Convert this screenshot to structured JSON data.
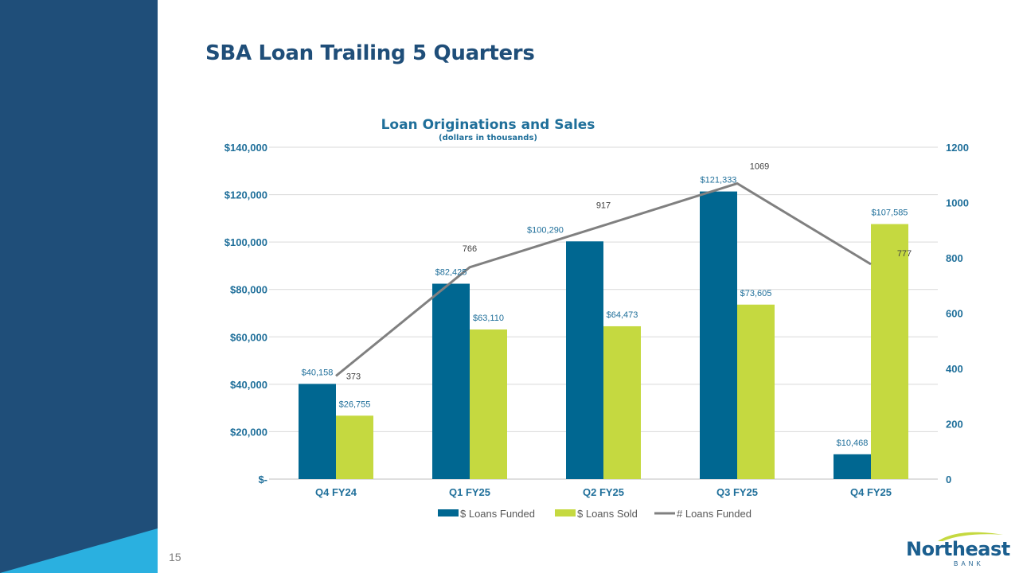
{
  "slide": {
    "title": "SBA Loan Trailing 5 Quarters",
    "page_number": "15"
  },
  "logo": {
    "name": "Northeast",
    "sub": "BANK"
  },
  "colors": {
    "sidebar": "#1f4e79",
    "sidebar_accent": "#2ab0e0",
    "funded": "#006791",
    "sold": "#c5d940",
    "count_line": "#808080",
    "axis_text": "#1f6f9a",
    "title": "#1f6f9a"
  },
  "chart_data": {
    "type": "bar",
    "title": "Loan Originations and Sales",
    "subtitle": "(dollars in thousands)",
    "categories": [
      "Q4 FY24",
      "Q1 FY25",
      "Q2 FY25",
      "Q3 FY25",
      "Q4 FY25"
    ],
    "series": [
      {
        "name": "$ Loans Funded",
        "kind": "bar",
        "axis": "left",
        "values": [
          40158,
          82425,
          100290,
          121333,
          10468
        ],
        "labels": [
          "$40,158",
          "$82,425",
          "$100,290",
          "$121,333",
          "$10,468"
        ]
      },
      {
        "name": "$ Loans Sold",
        "kind": "bar",
        "axis": "left",
        "values": [
          26755,
          63110,
          64473,
          73605,
          107585
        ],
        "labels": [
          "$26,755",
          "$63,110",
          "$64,473",
          "$73,605",
          "$107,585"
        ]
      },
      {
        "name": "# Loans Funded",
        "kind": "line",
        "axis": "right",
        "values": [
          373,
          766,
          917,
          1069,
          777
        ],
        "labels": [
          "373",
          "766",
          "917",
          "1069",
          "777"
        ]
      }
    ],
    "y_left": {
      "lim": [
        0,
        140000
      ],
      "ticks": [
        0,
        20000,
        40000,
        60000,
        80000,
        100000,
        120000,
        140000
      ],
      "tick_labels": [
        "$-",
        "$20,000",
        "$40,000",
        "$60,000",
        "$80,000",
        "$100,000",
        "$120,000",
        "$140,000"
      ]
    },
    "y_right": {
      "lim": [
        0,
        1200
      ],
      "ticks": [
        0,
        200,
        400,
        600,
        800,
        1000,
        1200
      ],
      "tick_labels": [
        "0",
        "200",
        "400",
        "600",
        "800",
        "1000",
        "1200"
      ]
    },
    "grid": true,
    "legend": "bottom"
  }
}
